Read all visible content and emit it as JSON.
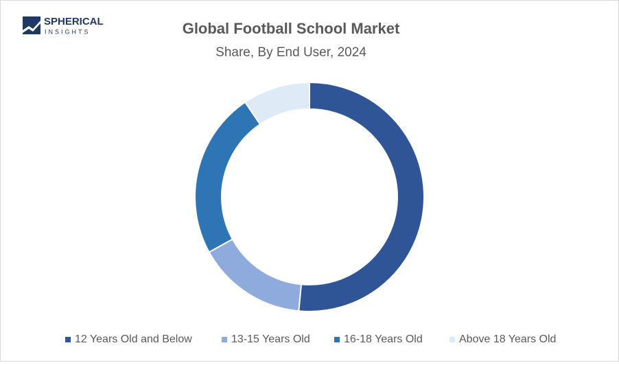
{
  "logo": {
    "name": "SPHERICAL",
    "tagline": "INSIGHTS"
  },
  "chart_data": {
    "type": "donut",
    "title": "Global Football School Market",
    "subtitle": "Share, By End User, 2024",
    "categories": [
      "12 Years Old and Below",
      "13-15 Years Old",
      "16-18 Years Old",
      "Above 18 Years Old"
    ],
    "values": [
      51.5,
      15.5,
      23.5,
      9.5
    ],
    "colors": [
      "#2f5597",
      "#8faadc",
      "#2e75b6",
      "#deebf7"
    ],
    "legend": "bottom"
  }
}
